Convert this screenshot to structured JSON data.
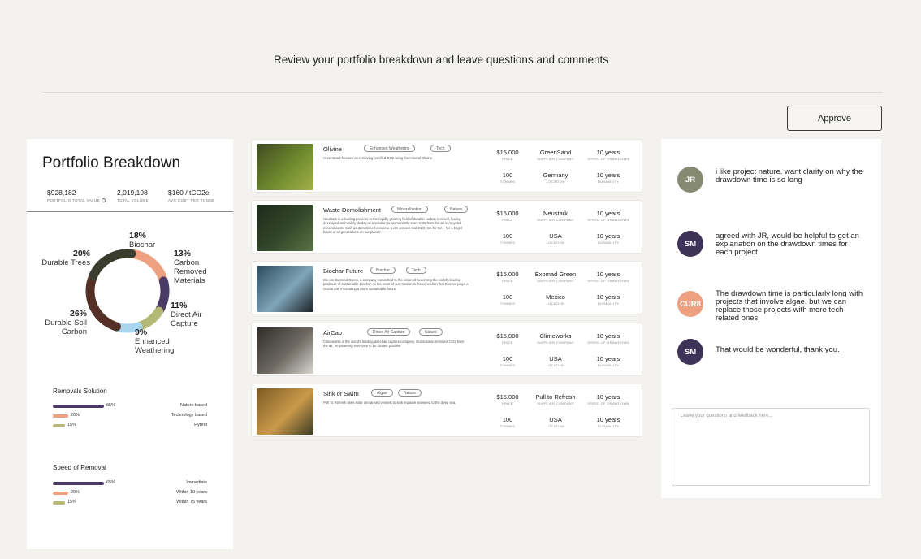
{
  "header": {
    "title": "Review your portfolio breakdown and leave questions and comments",
    "approve_label": "Approve"
  },
  "portfolio": {
    "title": "Portfolio Breakdown",
    "stats": [
      {
        "value": "$928,182",
        "label": "PORTFOLIO TOTAL VALUE"
      },
      {
        "value": "2,019,198",
        "label": "TOTAL VOLUME"
      },
      {
        "value": "$160 / tCO2e",
        "label": "AVG COST PER TONNE"
      }
    ],
    "breakdown": [
      {
        "pct": "20%",
        "name": "Durable Trees",
        "value": 20,
        "color": "#3a3d2d"
      },
      {
        "pct": "18%",
        "name": "Biochar",
        "value": 18,
        "color": "#eda180"
      },
      {
        "pct": "13%",
        "name": "Carbon Removed Materials",
        "value": 13,
        "color": "#4a3b66"
      },
      {
        "pct": "11%",
        "name": "Direct Air Capture",
        "value": 11,
        "color": "#b6b877"
      },
      {
        "pct": "9%",
        "name": "Enhanced Weathering",
        "value": 9,
        "color": "#a9d6ef"
      },
      {
        "pct": "26%",
        "name": "Durable Soil Carbon",
        "value": 26,
        "color": "#553026"
      }
    ],
    "removals_solution": {
      "title": "Removals Solution",
      "rows": [
        {
          "pct": "65%",
          "name": "Nature based",
          "value": 65,
          "color": "#4a3b66"
        },
        {
          "pct": "20%",
          "name": "Technology based",
          "value": 20,
          "color": "#eda180"
        },
        {
          "pct": "15%",
          "name": "Hybrid",
          "value": 15,
          "color": "#b6b877"
        }
      ]
    },
    "speed_of_removal": {
      "title": "Speed of Removal",
      "rows": [
        {
          "pct": "65%",
          "name": "Immediate",
          "value": 65,
          "color": "#4a3b66"
        },
        {
          "pct": "20%",
          "name": "Within 10 years",
          "value": 20,
          "color": "#eda180"
        },
        {
          "pct": "15%",
          "name": "Within 75 years",
          "value": 15,
          "color": "#b6b877"
        }
      ]
    }
  },
  "projects": [
    {
      "name": "Olivine",
      "tags": [
        "Enhanced Weathering",
        "Tech"
      ],
      "description": "GreenSand focuses on removing portified CO2 using the mineral Olivine.",
      "price": "$15,000",
      "price_label": "PRICE",
      "tonnes": "100",
      "tonnes_label": "TONNES",
      "supplier": "GreenSand",
      "supplier_label": "SUPPLIER COMPANY",
      "location": "Germany",
      "location_label": "LOCATION",
      "speed": "10 years",
      "speed_label": "SPEED OF DRAWDOWN",
      "durability": "10 years",
      "durability_label": "DURABILITY",
      "thumb_colors": [
        "#3f4a22",
        "#6f8a2e",
        "#a4b04a"
      ]
    },
    {
      "name": "Waste Demolishment",
      "tags": [
        "Mineralization",
        "Nature"
      ],
      "description": "Neustark is a leading provider in the rapidly growing field of durable carbon removal, having developed and widely deployed a solution to permanently store CO2 from the air in recycled mineral waste such as demolished concrete. Let's remove that CO2, ton for ton – for a bright future of all generations on our planet!",
      "price": "$15,000",
      "price_label": "PRICE",
      "tonnes": "100",
      "tonnes_label": "TONNES",
      "supplier": "Neustark",
      "supplier_label": "SUPPLIER COMPANY",
      "location": "USA",
      "location_label": "LOCATION",
      "speed": "10 years",
      "speed_label": "SPEED OF DRAWDOWN",
      "durability": "10 years",
      "durability_label": "DURABILITY",
      "thumb_colors": [
        "#1d2a1a",
        "#34492b",
        "#5b7345"
      ]
    },
    {
      "name": "Biochar Future",
      "tags": [
        "Biochar",
        "Tech"
      ],
      "description": "We are Exomad Green, a company committed to the vision of becoming the world's leading producer of sustainable Biochar. At the heart of our mission is the conviction that Biochar plays a crucial role in creating a more sustainable future.",
      "price": "$15,000",
      "price_label": "PRICE",
      "tonnes": "100",
      "tonnes_label": "TONNES",
      "supplier": "Exomad Green",
      "supplier_label": "SUPPLIER COMPANY",
      "location": "Mexico",
      "location_label": "LOCATION",
      "speed": "10 years",
      "speed_label": "SPEED OF DRAWDOWN",
      "durability": "10 years",
      "durability_label": "DURABILITY",
      "thumb_colors": [
        "#2b4a5c",
        "#7fa6b8",
        "#1a1f24"
      ]
    },
    {
      "name": "AirCap",
      "tags": [
        "Direct Air Capture",
        "Nature"
      ],
      "description": "Climeworks is the world's leading direct air capture company. Our solution removes CO2 from the air, empowering everyone to be climate positive.",
      "price": "$15,000",
      "price_label": "PRICE",
      "tonnes": "100",
      "tonnes_label": "TONNES",
      "supplier": "Climeworks",
      "supplier_label": "SUPPLIER COMPANY",
      "location": "USA",
      "location_label": "LOCATION",
      "speed": "10 years",
      "speed_label": "SPEED OF DRAWDOWN",
      "durability": "10 years",
      "durability_label": "DURABILITY",
      "thumb_colors": [
        "#2e2b28",
        "#6e6a63",
        "#d9d6d0"
      ]
    },
    {
      "name": "Sink or Swim",
      "tags": [
        "Algae",
        "Nature"
      ],
      "description": "Pull To Refresh uses solar unmanned vessels to sink invasive seaweed to the deep sea.",
      "price": "$15,000",
      "price_label": "PRICE",
      "tonnes": "100",
      "tonnes_label": "TONNES",
      "supplier": "Pull to Refresh",
      "supplier_label": "SUPPLIER COMPANY",
      "location": "USA",
      "location_label": "LOCATION",
      "speed": "10 years",
      "speed_label": "SPEED OF DRAWDOWN",
      "durability": "10 years",
      "durability_label": "DURABILITY",
      "thumb_colors": [
        "#7a5a22",
        "#c99a4a",
        "#3e3a25"
      ]
    }
  ],
  "comments": [
    {
      "initials": "JR",
      "color": "#878a72",
      "text": "i like project nature. want clarity on why the drawdown time is so long"
    },
    {
      "initials": "SM",
      "color": "#3d3358",
      "text": "agreed with JR, would be helpful to get an explanation on the drawdown times for each project"
    },
    {
      "initials": "CUR8",
      "color": "#eda180",
      "text": "The drawdown time is particularly long with projects that involve algae, but we can replace those projects with more tech related ones!"
    },
    {
      "initials": "SM",
      "color": "#3d3358",
      "text": "That would be wonderful, thank you."
    }
  ],
  "feedback_placeholder": "Leave your questions and feedback here..."
}
